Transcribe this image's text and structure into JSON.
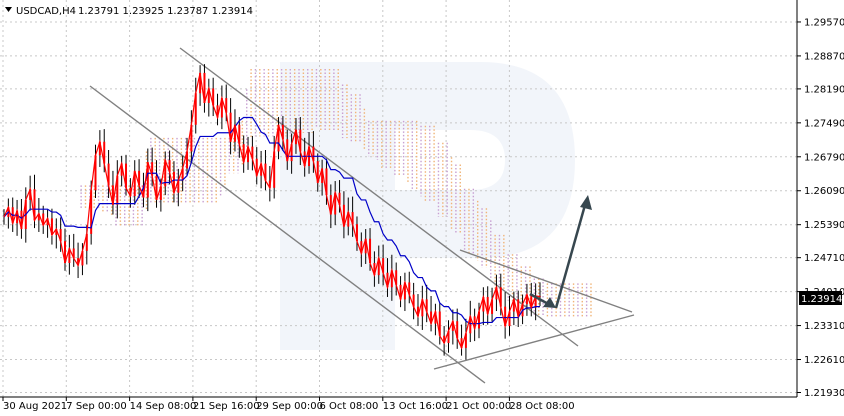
{
  "header": {
    "symbol": "USDCAD,H4",
    "ohlc": "1.23791 1.23925 1.23787 1.23914"
  },
  "colors": {
    "candle": "#ff0000",
    "price_line": "#0000c8",
    "cloud_upper": "#c8a0d2",
    "cloud_lower": "#f0b478",
    "channel": "#808080",
    "arrow": "#37474f",
    "watermark": "#e8edf5",
    "price_tag_bg": "#000000",
    "price_tag_text": "#ffffff"
  },
  "chart_data": {
    "type": "line",
    "title": "USDCAD,H4  1.23791 1.23925 1.23787 1.23914",
    "xlabel": "",
    "ylabel": "",
    "x_tick_labels": [
      "30 Aug 2021",
      "7 Sep 00:00",
      "14 Sep 08:00",
      "21 Sep 16:00",
      "29 Sep 00:00",
      "6 Oct 08:00",
      "13 Oct 16:00",
      "21 Oct 00:00",
      "28 Oct 08:00"
    ],
    "y_tick_labels": [
      "1.29570",
      "1.28870",
      "1.28190",
      "1.27490",
      "1.26790",
      "1.26090",
      "1.25390",
      "1.24710",
      "1.24010",
      "1.23310",
      "1.22610",
      "1.21930"
    ],
    "ylim": [
      1.2193,
      1.2992
    ],
    "grid": true,
    "last_price": "1.23914",
    "series": [
      {
        "values": [
          1.2555,
          1.2575,
          1.2542,
          1.2568,
          1.253,
          1.259,
          1.2612,
          1.2548,
          1.2562,
          1.2538,
          1.2552,
          1.2518,
          1.253,
          1.2505,
          1.246,
          1.249,
          1.247,
          1.2455,
          1.2485,
          1.252,
          1.261,
          1.2682,
          1.271,
          1.2665,
          1.262,
          1.258,
          1.264,
          1.2665,
          1.2615,
          1.2598,
          1.265,
          1.262,
          1.2595,
          1.2668,
          1.264,
          1.259,
          1.2618,
          1.2672,
          1.2648,
          1.2605,
          1.263,
          1.2655,
          1.269,
          1.2745,
          1.281,
          1.2852,
          1.279,
          1.282,
          1.2785,
          1.276,
          1.28,
          1.277,
          1.271,
          1.2745,
          1.2705,
          1.2668,
          1.27,
          1.2675,
          1.264,
          1.2665,
          1.263,
          1.2615,
          1.269,
          1.2745,
          1.2715,
          1.267,
          1.2705,
          1.2735,
          1.269,
          1.266,
          1.27,
          1.267,
          1.2625,
          1.2655,
          1.26,
          1.256,
          1.2605,
          1.258,
          1.2535,
          1.2565,
          1.254,
          1.2505,
          1.248,
          1.251,
          1.246,
          1.2435,
          1.247,
          1.244,
          1.241,
          1.2445,
          1.2415,
          1.2385,
          1.242,
          1.2395,
          1.237,
          1.235,
          1.2385,
          1.236,
          1.2335,
          1.236,
          1.231,
          1.2295,
          1.232,
          1.234,
          1.2305,
          1.2285,
          1.2315,
          1.235,
          1.2325,
          1.236,
          1.239,
          1.2355,
          1.2385,
          1.241,
          1.237,
          1.233,
          1.236,
          1.2385,
          1.235,
          1.2375,
          1.2395,
          1.2368,
          1.2392,
          1.2391
        ]
      }
    ]
  }
}
